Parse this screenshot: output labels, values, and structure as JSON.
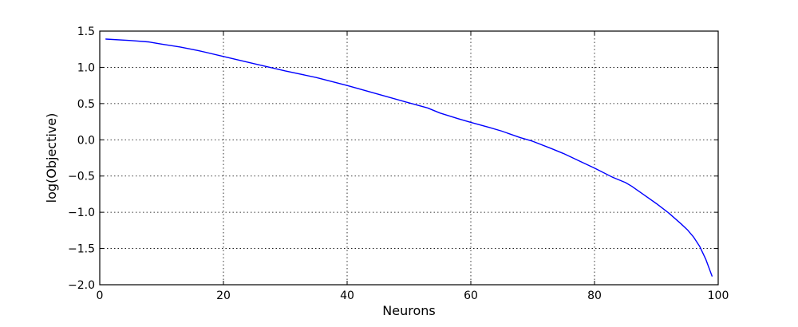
{
  "colors": {
    "line": "#0000ff",
    "axis": "#000000",
    "grid": "#000000",
    "background": "#ffffff"
  },
  "chart_data": {
    "type": "line",
    "xlabel": "Neurons",
    "ylabel": "log(Objective)",
    "xlim": [
      0,
      100
    ],
    "ylim": [
      -2.0,
      1.5
    ],
    "grid": true,
    "xticks": [
      0,
      20,
      40,
      60,
      80,
      100
    ],
    "yticks": [
      1.5,
      1.0,
      0.5,
      0.0,
      -0.5,
      -1.0,
      -1.5,
      -2.0
    ],
    "xtick_labels": [
      "0",
      "20",
      "40",
      "60",
      "80",
      "100"
    ],
    "ytick_labels": [
      "1.5",
      "1.0",
      "0.5",
      "0.0",
      "−0.5",
      "−1.0",
      "−1.5",
      "−2.0"
    ],
    "series": [
      {
        "points": [
          [
            1,
            1.39
          ],
          [
            5,
            1.37
          ],
          [
            8,
            1.35
          ],
          [
            10,
            1.32
          ],
          [
            13,
            1.28
          ],
          [
            16,
            1.23
          ],
          [
            20,
            1.15
          ],
          [
            25,
            1.05
          ],
          [
            30,
            0.95
          ],
          [
            35,
            0.86
          ],
          [
            40,
            0.75
          ],
          [
            45,
            0.63
          ],
          [
            50,
            0.51
          ],
          [
            53,
            0.44
          ],
          [
            55,
            0.37
          ],
          [
            58,
            0.29
          ],
          [
            60,
            0.24
          ],
          [
            63,
            0.17
          ],
          [
            65,
            0.12
          ],
          [
            68,
            0.03
          ],
          [
            70,
            -0.02
          ],
          [
            73,
            -0.12
          ],
          [
            75,
            -0.19
          ],
          [
            78,
            -0.31
          ],
          [
            80,
            -0.39
          ],
          [
            83,
            -0.52
          ],
          [
            85,
            -0.59
          ],
          [
            86,
            -0.64
          ],
          [
            88,
            -0.76
          ],
          [
            90,
            -0.88
          ],
          [
            92,
            -1.01
          ],
          [
            94,
            -1.16
          ],
          [
            95,
            -1.24
          ],
          [
            96,
            -1.34
          ],
          [
            97,
            -1.47
          ],
          [
            98,
            -1.65
          ],
          [
            99,
            -1.88
          ]
        ]
      }
    ]
  }
}
